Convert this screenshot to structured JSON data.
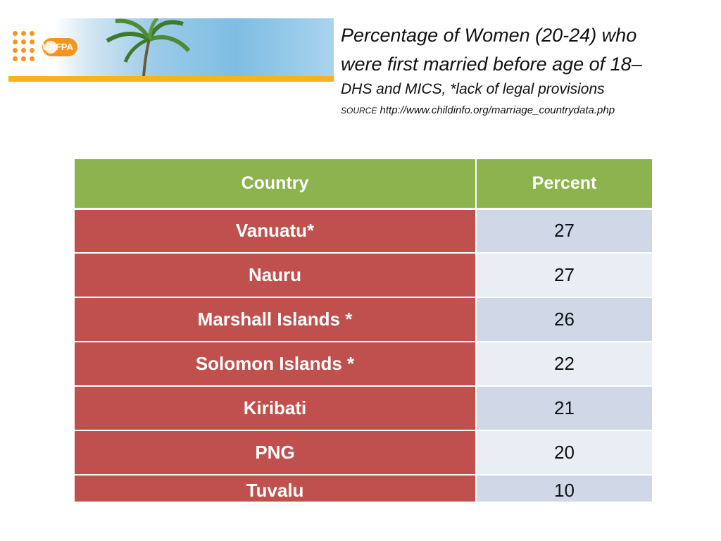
{
  "banner": {
    "logo_text": "UNFPA",
    "icons": [
      "unfpa-logo",
      "palm-tree"
    ],
    "colors": {
      "stripe": "#f4b41a",
      "logo_orange": "#f7941d"
    }
  },
  "title": {
    "line1": "Percentage of Women (20-24) who",
    "line2": "were first married before age of 18–",
    "subtitle": "DHS and MICS, *lack of legal provisions",
    "source_label": "SOURCE",
    "source_url": "http://www.childinfo.org/marriage_countrydata.php"
  },
  "table": {
    "headers": {
      "country": "Country",
      "percent": "Percent"
    },
    "rows": [
      {
        "country": "Vanuatu*",
        "percent": "27"
      },
      {
        "country": "Nauru",
        "percent": "27"
      },
      {
        "country": "Marshall Islands *",
        "percent": "26"
      },
      {
        "country": "Solomon Islands *",
        "percent": "22"
      },
      {
        "country": "Kiribati",
        "percent": "21"
      },
      {
        "country": "PNG",
        "percent": "20"
      },
      {
        "country": "Tuvalu",
        "percent": "10"
      }
    ],
    "colors": {
      "header": "#8db34e",
      "country_cell": "#c0504d",
      "percent_odd": "#d0d8e8",
      "percent_even": "#e9edf4"
    }
  }
}
